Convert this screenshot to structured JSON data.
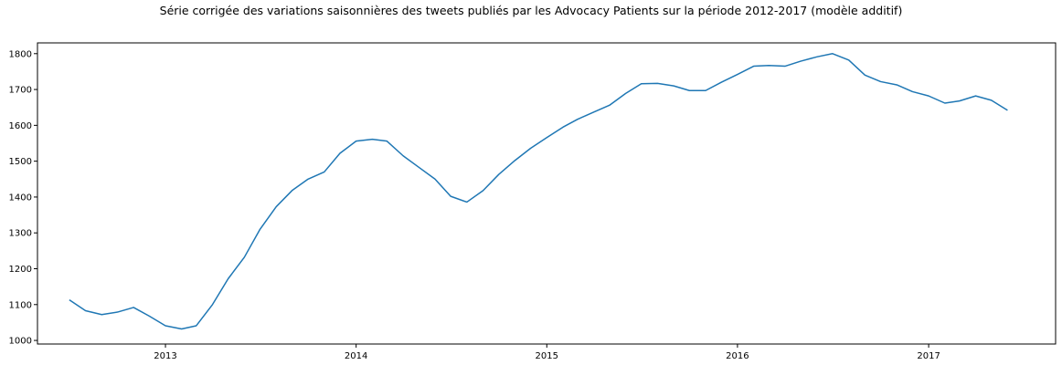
{
  "chart_data": {
    "type": "line",
    "title": "Série corrigée des variations saisonnières des tweets publiés par les Advocacy Patients sur la période 2012-2017 (modèle additif)",
    "xlabel": "",
    "ylabel": "",
    "xlim": [
      "2012-05-01",
      "2017-09-01"
    ],
    "ylim": [
      990,
      1830
    ],
    "grid": false,
    "x_ticks": [
      "2013",
      "2014",
      "2015",
      "2016",
      "2017"
    ],
    "y_ticks": [
      1000,
      1100,
      1200,
      1300,
      1400,
      1500,
      1600,
      1700,
      1800
    ],
    "series": [
      {
        "color": "#1f77b4",
        "x": [
          "2012-07-01",
          "2012-08-01",
          "2012-09-01",
          "2012-10-01",
          "2012-11-01",
          "2012-12-01",
          "2013-01-01",
          "2013-02-01",
          "2013-03-01",
          "2013-04-01",
          "2013-05-01",
          "2013-06-01",
          "2013-07-01",
          "2013-08-01",
          "2013-09-01",
          "2013-10-01",
          "2013-11-01",
          "2013-12-01",
          "2014-01-01",
          "2014-02-01",
          "2014-03-01",
          "2014-04-01",
          "2014-05-01",
          "2014-06-01",
          "2014-07-01",
          "2014-08-01",
          "2014-09-01",
          "2014-10-01",
          "2014-11-01",
          "2014-12-01",
          "2015-01-01",
          "2015-02-01",
          "2015-03-01",
          "2015-04-01",
          "2015-05-01",
          "2015-06-01",
          "2015-07-01",
          "2015-08-01",
          "2015-09-01",
          "2015-10-01",
          "2015-11-01",
          "2015-12-01",
          "2016-01-01",
          "2016-02-01",
          "2016-03-01",
          "2016-04-01",
          "2016-05-01",
          "2016-06-01",
          "2016-07-01",
          "2016-08-01",
          "2016-09-01",
          "2016-10-01",
          "2016-11-01",
          "2016-12-01",
          "2017-01-01",
          "2017-02-01",
          "2017-03-01",
          "2017-04-01",
          "2017-05-01",
          "2017-06-01"
        ],
        "values": [
          1113,
          1083,
          1072,
          1079,
          1092,
          1068,
          1041,
          1032,
          1041,
          1100,
          1172,
          1232,
          1310,
          1373,
          1419,
          1450,
          1470,
          1522,
          1556,
          1561,
          1556,
          1515,
          1483,
          1450,
          1402,
          1386,
          1418,
          1463,
          1502,
          1536,
          1566,
          1595,
          1617,
          1637,
          1656,
          1689,
          1716,
          1717,
          1710,
          1697,
          1697,
          1720,
          1742,
          1765,
          1767,
          1765,
          1779,
          1791,
          1800,
          1782,
          1740,
          1722,
          1713,
          1694,
          1682,
          1662,
          1668,
          1682,
          1670,
          1642
        ]
      }
    ]
  }
}
